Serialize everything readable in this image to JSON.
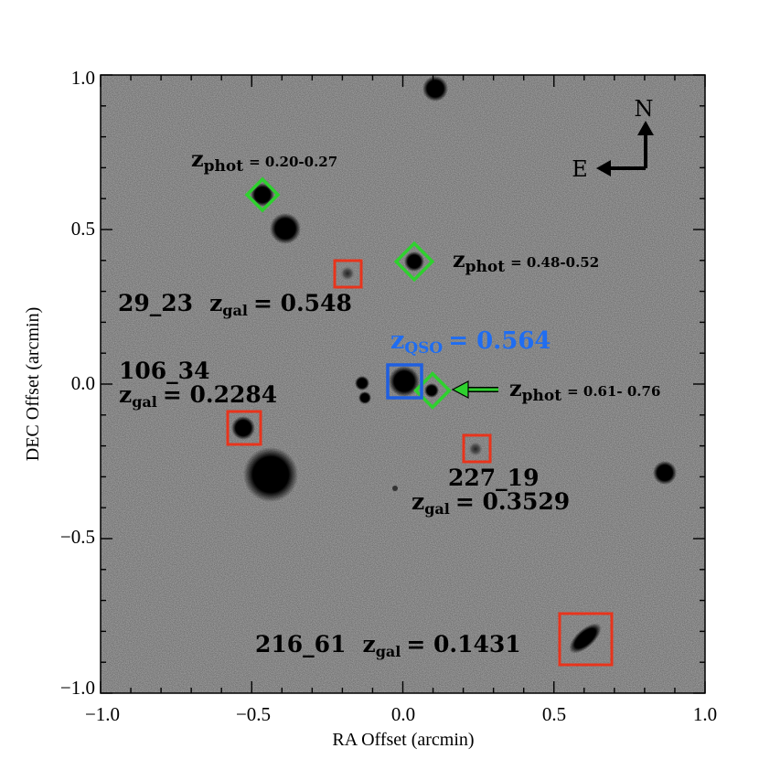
{
  "figure": {
    "x_axis": {
      "label": "RA Offset (arcmin)",
      "range": [
        -1.0,
        1.0
      ],
      "ticks": [
        "−1.0",
        "−0.5",
        "0.0",
        "0.5",
        "1.0"
      ]
    },
    "y_axis": {
      "label": "DEC Offset (arcmin)",
      "range": [
        -1.0,
        1.0
      ],
      "ticks": [
        "1.0",
        "0.5",
        "0.0",
        "−0.5",
        "−1.0"
      ]
    },
    "compass": {
      "north": "N",
      "east": "E"
    },
    "qso": {
      "z": "z",
      "sub": "QSO",
      "value": "= 0.564",
      "color": "#1f6df2"
    },
    "phot_labels": [
      {
        "z": "z",
        "sub": "phot",
        "value": "= 0.20-0.27"
      },
      {
        "z": "z",
        "sub": "phot",
        "value": "= 0.48-0.52"
      },
      {
        "z": "z",
        "sub": "phot",
        "value": "= 0.61- 0.76"
      }
    ],
    "galaxies": [
      {
        "id": "29_23",
        "z": "z",
        "sub": "gal",
        "value": "= 0.548"
      },
      {
        "id": "106_34",
        "z": "z",
        "sub": "gal",
        "value": "= 0.2284"
      },
      {
        "id": "227_19",
        "z": "z",
        "sub": "gal",
        "value": "= 0.3529"
      },
      {
        "id": "216_61",
        "z": "z",
        "sub": "gal",
        "value": "= 0.1431"
      }
    ],
    "marker_colors": {
      "spectroscopic": "#e8341c",
      "photometric": "#2ed12e",
      "qso": "#1f5fe0",
      "arrow": "#2ed12e"
    }
  }
}
